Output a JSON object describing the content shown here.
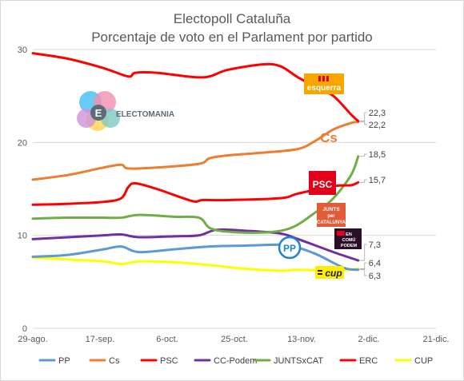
{
  "chart_data": {
    "type": "line",
    "title": "Electopoll Cataluña",
    "subtitle": "Porcentaje de voto en el Parlament por partido",
    "xlabel": "",
    "ylabel": "",
    "ylim": [
      0,
      30
    ],
    "yticks": [
      "0",
      "10",
      "20",
      "30"
    ],
    "xticks": [
      "29-ago.",
      "17-sep.",
      "6-oct.",
      "25-oct.",
      "13-nov.",
      "2-dic.",
      "21-dic."
    ],
    "grid": true,
    "legend_position": "bottom",
    "x_index_note_days_from_29_ago": true,
    "series": [
      {
        "name": "PP",
        "color": "#5b9bd5",
        "x": [
          0,
          10,
          20,
          25,
          30,
          40,
          50,
          60,
          70,
          73,
          80,
          88,
          92
        ],
        "values": [
          7.7,
          7.9,
          8.5,
          8.8,
          8.2,
          8.5,
          8.8,
          8.9,
          9.0,
          8.9,
          8.0,
          6.5,
          6.3
        ],
        "end_label": "6,3"
      },
      {
        "name": "Cs",
        "color": "#ed7d31",
        "x": [
          0,
          10,
          20,
          25,
          27,
          35,
          47,
          50,
          55,
          65,
          75,
          80,
          85,
          90,
          92
        ],
        "values": [
          16.0,
          16.5,
          17.3,
          17.6,
          17.2,
          17.3,
          17.7,
          18.3,
          18.6,
          18.9,
          19.3,
          20.2,
          21.4,
          22.1,
          22.2
        ],
        "end_label": "22,2"
      },
      {
        "name": "PSC",
        "color": "#ff0000",
        "x": [
          0,
          10,
          20,
          25,
          27,
          29,
          35,
          45,
          48,
          55,
          70,
          75,
          85,
          90,
          92
        ],
        "values": [
          13.3,
          13.4,
          13.6,
          14.0,
          15.2,
          15.6,
          15.0,
          13.7,
          13.8,
          13.8,
          14.0,
          14.5,
          15.3,
          15.4,
          15.7
        ],
        "end_label": "15,7"
      },
      {
        "name": "CC-Podem",
        "color": "#7030a0",
        "x": [
          0,
          10,
          20,
          25,
          30,
          40,
          47,
          52,
          60,
          70,
          75,
          85,
          92
        ],
        "values": [
          9.6,
          9.8,
          10.0,
          10.1,
          9.8,
          9.9,
          10.0,
          10.6,
          10.5,
          10.2,
          9.6,
          8.2,
          7.3
        ],
        "end_label": "7,3"
      },
      {
        "name": "JUNTSxCAT",
        "color": "#70ad47",
        "x": [
          0,
          10,
          20,
          25,
          30,
          40,
          47,
          50,
          55,
          65,
          73,
          80,
          85,
          90,
          92
        ],
        "values": [
          11.8,
          11.9,
          11.9,
          11.9,
          12.2,
          12.0,
          11.9,
          10.8,
          10.4,
          10.3,
          10.8,
          12.5,
          14.0,
          16.5,
          18.5
        ],
        "end_label": "18,5"
      },
      {
        "name": "ERC",
        "color": "#ff0000",
        "x": [
          0,
          10,
          20,
          27,
          29,
          35,
          48,
          55,
          65,
          70,
          75,
          80,
          85,
          90,
          92
        ],
        "values": [
          29.6,
          29.0,
          28.0,
          27.1,
          27.5,
          27.5,
          27.0,
          27.8,
          28.4,
          28.2,
          27.0,
          26.0,
          25.0,
          23.0,
          22.3
        ],
        "end_label": "22,3"
      },
      {
        "name": "CUP",
        "color": "#ffff00",
        "x": [
          0,
          10,
          20,
          25,
          30,
          40,
          50,
          60,
          70,
          75,
          85,
          92
        ],
        "values": [
          7.6,
          7.4,
          7.2,
          6.9,
          7.2,
          7.1,
          6.8,
          6.4,
          6.2,
          6.3,
          6.2,
          6.4
        ],
        "end_label": "6,4"
      }
    ]
  },
  "logos": {
    "electomania_text": "ELECTOMANIA",
    "electomania_letter": "E",
    "esquerra": "esquerra",
    "cs": "Cs",
    "psc": "PSC",
    "junts_line1": "JUNTS",
    "junts_line2": "per",
    "junts_line3": "CATALUNYA",
    "podem_line1": "EN",
    "podem_line2": "COMÚ",
    "podem_line3": "PODEM",
    "pp": "PP",
    "cup": "cup"
  }
}
